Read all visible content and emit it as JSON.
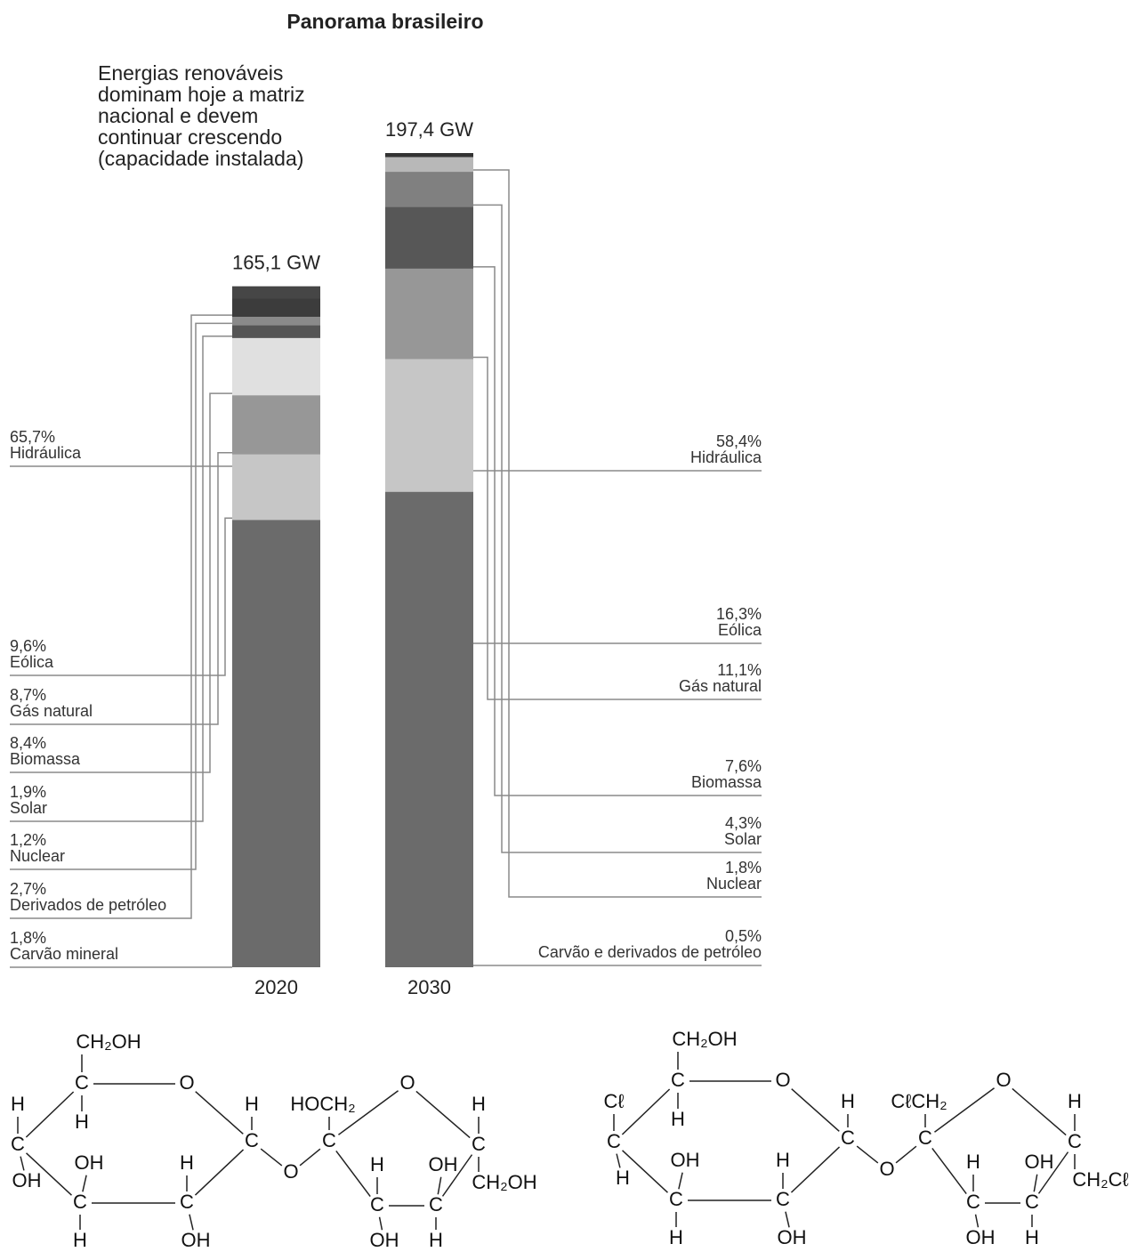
{
  "chart_data": {
    "type": "stacked_bar",
    "title": "Panorama brasileiro",
    "subtitle": [
      "Energias renováveis",
      "dominam hoje a matriz",
      "nacional e devem",
      "continuar crescendo",
      "(capacidade instalada)"
    ],
    "categories": [
      "2020",
      "2030"
    ],
    "totals": [
      165.1,
      197.4
    ],
    "total_labels": [
      "165,1 GW",
      "197,4 GW"
    ],
    "bars": [
      {
        "segments": [
          "Hidráulica",
          "Eólica",
          "Gás natural",
          "Biomassa",
          "Solar",
          "Nuclear",
          "Derivados de petróleo",
          "Carvão mineral"
        ],
        "values": [
          65.7,
          9.6,
          8.7,
          8.4,
          1.9,
          1.2,
          2.7,
          1.8
        ],
        "value_labels": [
          "65,7%",
          "9,6%",
          "8,7%",
          "8,4%",
          "1,9%",
          "1,2%",
          "2,7%",
          "1,8%"
        ],
        "colors": [
          "#6b6b6b",
          "#c6c6c6",
          "#979797",
          "#e0e0e0",
          "#555555",
          "#8a8a8a",
          "#3c3c3c",
          "#464646"
        ]
      },
      {
        "segments": [
          "Hidráulica",
          "Eólica",
          "Gás natural",
          "Biomassa",
          "Solar",
          "Nuclear",
          "Carvão e derivados de petróleo"
        ],
        "values": [
          58.4,
          16.3,
          11.1,
          7.6,
          4.3,
          1.8,
          0.5
        ],
        "value_labels": [
          "58,4%",
          "16,3%",
          "11,1%",
          "7,6%",
          "4,3%",
          "1,8%",
          "0,5%"
        ],
        "colors": [
          "#6b6b6b",
          "#c6c6c6",
          "#979797",
          "#575757",
          "#808080",
          "#b8b8b8",
          "#333333"
        ]
      }
    ]
  },
  "molecules": [
    {
      "atoms": [
        "CH₂OH",
        "C",
        "H",
        "O",
        "H",
        "C",
        "OH",
        "OH",
        "C",
        "H",
        "H",
        "C",
        "OH",
        "H",
        "C",
        "O",
        "HOCH₂",
        "C",
        "O",
        "H",
        "C",
        "CH₂OH",
        "H",
        "C",
        "OH",
        "OH",
        "C",
        "H"
      ]
    },
    {
      "atoms": [
        "CH₂OH",
        "C",
        "H",
        "O",
        "Cℓ",
        "C",
        "H",
        "OH",
        "C",
        "H",
        "H",
        "C",
        "OH",
        "H",
        "C",
        "O",
        "CℓCH₂",
        "C",
        "O",
        "H",
        "C",
        "CH₂Cℓ",
        "H",
        "C",
        "OH",
        "OH",
        "C",
        "H"
      ]
    }
  ]
}
